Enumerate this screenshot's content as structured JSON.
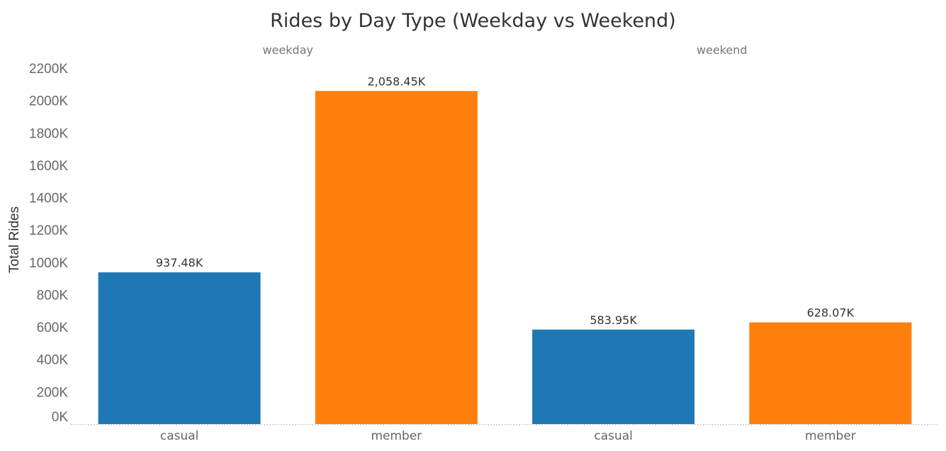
{
  "chart_data": {
    "type": "bar",
    "title": "Rides by Day Type (Weekday vs Weekend)",
    "xlabel": "",
    "ylabel": "Total Rides",
    "ylim": [
      0,
      2200
    ],
    "yticks": [
      {
        "value": 0,
        "label": "0K"
      },
      {
        "value": 200,
        "label": "200K"
      },
      {
        "value": 400,
        "label": "400K"
      },
      {
        "value": 600,
        "label": "600K"
      },
      {
        "value": 800,
        "label": "800K"
      },
      {
        "value": 1000,
        "label": "1000K"
      },
      {
        "value": 1200,
        "label": "1200K"
      },
      {
        "value": 1400,
        "label": "1400K"
      },
      {
        "value": 1600,
        "label": "1600K"
      },
      {
        "value": 1800,
        "label": "1800K"
      },
      {
        "value": 2000,
        "label": "2000K"
      },
      {
        "value": 2200,
        "label": "2200K"
      }
    ],
    "grid": false,
    "legend": "none",
    "colors": {
      "casual": "#1f77b4",
      "member": "#ff7f0e"
    },
    "panels": [
      {
        "name": "weekday",
        "categories": [
          "casual",
          "member"
        ],
        "values": [
          937.48,
          2058.45
        ],
        "labels": [
          "937.48K",
          "2,058.45K"
        ]
      },
      {
        "name": "weekend",
        "categories": [
          "casual",
          "member"
        ],
        "values": [
          583.95,
          628.07
        ],
        "labels": [
          "583.95K",
          "628.07K"
        ]
      }
    ]
  }
}
